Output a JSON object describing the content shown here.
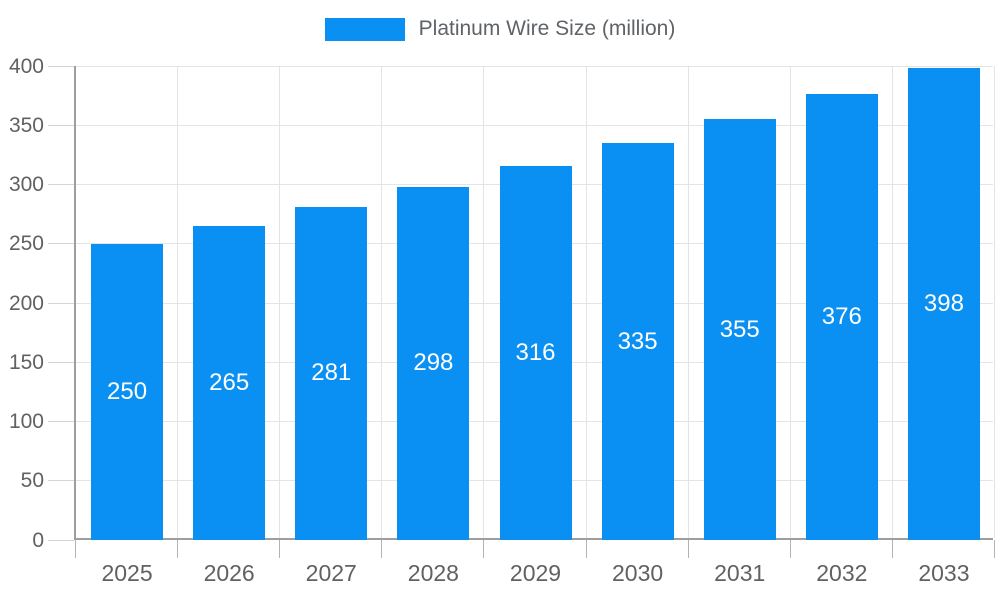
{
  "legend": {
    "label": "Platinum Wire Size (million)",
    "swatch_color": "#0a90f3"
  },
  "chart_data": {
    "type": "bar",
    "title": "Platinum Wire Size (million)",
    "categories": [
      "2025",
      "2026",
      "2027",
      "2028",
      "2029",
      "2030",
      "2031",
      "2032",
      "2033"
    ],
    "values": [
      250,
      265,
      281,
      298,
      316,
      335,
      355,
      376,
      398
    ],
    "series_name": "Platinum Wire Size (million)",
    "xlabel": "",
    "ylabel": "",
    "ylim": [
      0,
      400
    ],
    "ytick_step": 50,
    "yticks": [
      0,
      50,
      100,
      150,
      200,
      250,
      300,
      350,
      400
    ],
    "grid": true,
    "legend_position": "top",
    "value_labels": "inside-center",
    "colors": {
      "bar": "#0a90f3",
      "value_label": "#ffffff",
      "axis_line": "#9e9e9e",
      "gridline": "#e4e4e4",
      "tick_label": "#616161",
      "legend_text": "#5f6368",
      "background": "#ffffff"
    }
  }
}
